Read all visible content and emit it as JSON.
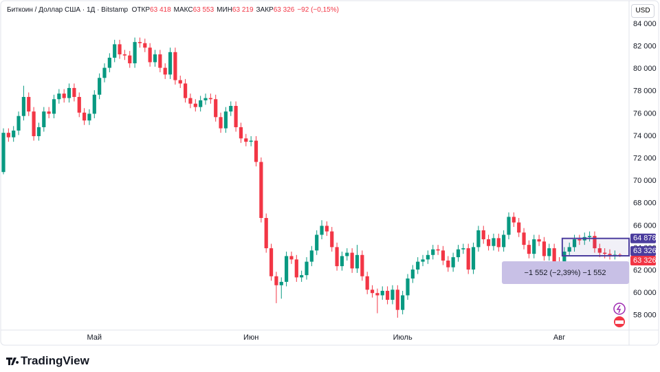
{
  "chart_data": {
    "type": "candlestick",
    "title": "Биткоин / Доллар США · 1Д · Bitstamp",
    "ohlc_labels": [
      {
        "name": "ОТКР",
        "value": "63 418"
      },
      {
        "name": "МАКС",
        "value": "63 553"
      },
      {
        "name": "МИН",
        "value": "63 219"
      },
      {
        "name": "ЗАКР",
        "value": "63 326"
      }
    ],
    "change": "−92 (−0,15%)",
    "currency": "USD",
    "brand": "TradingView",
    "up_color": "#089981",
    "down_color": "#f23645",
    "ylim": [
      56700,
      84800
    ],
    "yticks": [
      {
        "value": 84000,
        "label": "84 000"
      },
      {
        "value": 82000,
        "label": "82 000"
      },
      {
        "value": 80000,
        "label": "80 000"
      },
      {
        "value": 78000,
        "label": "78 000"
      },
      {
        "value": 76000,
        "label": "76 000"
      },
      {
        "value": 74000,
        "label": "74 000"
      },
      {
        "value": 72000,
        "label": "72 000"
      },
      {
        "value": 70000,
        "label": "70 000"
      },
      {
        "value": 68000,
        "label": "68 000"
      },
      {
        "value": 66000,
        "label": "66 000"
      },
      {
        "value": 64000,
        "label": "64 000"
      },
      {
        "value": 62000,
        "label": "62 000"
      },
      {
        "value": 60000,
        "label": "60 000"
      },
      {
        "value": 58000,
        "label": "58 000"
      }
    ],
    "grid": false,
    "categories": [
      null,
      null,
      null,
      null,
      null,
      null,
      null,
      null,
      null,
      null,
      null,
      null,
      null,
      null,
      null,
      null,
      null,
      null,
      "Май",
      null,
      null,
      null,
      null,
      null,
      null,
      null,
      null,
      null,
      null,
      null,
      null,
      null,
      null,
      null,
      null,
      null,
      null,
      null,
      null,
      null,
      null,
      null,
      null,
      null,
      null,
      null,
      null,
      null,
      null,
      "Июн",
      null,
      null,
      null,
      null,
      null,
      null,
      null,
      null,
      null,
      null,
      null,
      null,
      null,
      null,
      null,
      null,
      null,
      null,
      null,
      null,
      null,
      null,
      null,
      null,
      null,
      null,
      null,
      null,
      null,
      "Июль",
      null,
      null,
      null,
      null,
      null,
      null,
      null,
      null,
      null,
      null,
      null,
      null,
      null,
      null,
      null,
      null,
      null,
      null,
      null,
      null,
      null,
      null,
      null,
      null,
      null,
      null,
      null,
      null,
      null,
      null,
      "Авг",
      null,
      null,
      null,
      null,
      null,
      null,
      null,
      null,
      null,
      null,
      null,
      null
    ],
    "open": [
      70800,
      74300,
      73900,
      74500,
      75800,
      77500,
      76200,
      74000,
      74800,
      76200,
      76000,
      77300,
      77800,
      77400,
      78300,
      77500,
      76100,
      75400,
      76000,
      77700,
      79200,
      80100,
      81000,
      82200,
      81300,
      81200,
      80500,
      82400,
      82300,
      81900,
      80600,
      81300,
      80100,
      79500,
      81500,
      79000,
      78700,
      77400,
      76900,
      76600,
      77200,
      77400,
      77300,
      75700,
      74700,
      76200,
      76700,
      74800,
      73800,
      73500,
      73600,
      71700,
      66700,
      64000,
      61500,
      60700,
      61000,
      63300,
      63000,
      61400,
      61600,
      62800,
      63800,
      65200,
      66000,
      65500,
      64100,
      62400,
      63300,
      63600,
      62200,
      63400,
      61500,
      60300,
      60000,
      59800,
      60200,
      59400,
      60300,
      58500,
      59800,
      61300,
      62100,
      62800,
      63000,
      63400,
      63900,
      63800,
      62900,
      62300,
      63200,
      63900,
      64000,
      62100,
      64100,
      65600,
      64800,
      64200,
      64900,
      64100,
      65200,
      66800,
      66300,
      65400,
      64300,
      63500,
      64800,
      64600,
      63300,
      64000,
      62800,
      62600,
      63700,
      64100,
      64800,
      64700,
      65000,
      65100,
      64000,
      63600,
      63500,
      63400,
      63418
    ],
    "high": [
      74700,
      74700,
      74900,
      76200,
      78500,
      77900,
      76600,
      75200,
      76600,
      76600,
      77700,
      78200,
      78200,
      78700,
      78700,
      77900,
      76500,
      76400,
      78100,
      79600,
      80500,
      81400,
      82600,
      82600,
      81700,
      81600,
      82800,
      82800,
      82700,
      82300,
      81700,
      81700,
      80500,
      81900,
      81900,
      79400,
      79100,
      77800,
      77300,
      77600,
      77800,
      77800,
      77700,
      76100,
      76600,
      77100,
      77100,
      75200,
      74200,
      74000,
      74000,
      72100,
      67100,
      64400,
      61900,
      61400,
      63700,
      63700,
      63400,
      62000,
      63200,
      64200,
      65600,
      66500,
      66400,
      65900,
      64500,
      63700,
      64000,
      64000,
      64300,
      63800,
      61900,
      60700,
      60400,
      60600,
      60600,
      60700,
      60700,
      60200,
      61700,
      62500,
      63200,
      63400,
      63800,
      64300,
      64300,
      64200,
      63300,
      63600,
      64300,
      64400,
      64400,
      64500,
      66000,
      66000,
      65200,
      65300,
      65300,
      65600,
      67200,
      67200,
      66700,
      65800,
      64700,
      65200,
      65200,
      65000,
      64400,
      64400,
      63200,
      64100,
      64500,
      65200,
      65200,
      65400,
      65500,
      65500,
      64400,
      64000,
      63900,
      63800,
      63553
    ],
    "low": [
      70600,
      73500,
      73500,
      74100,
      75400,
      75800,
      73600,
      73600,
      74400,
      75600,
      75600,
      76900,
      77000,
      77000,
      77100,
      75700,
      75000,
      75000,
      75600,
      77300,
      78800,
      79700,
      80600,
      80900,
      80800,
      80100,
      80100,
      81900,
      81500,
      80200,
      80200,
      79700,
      79100,
      79100,
      78600,
      78300,
      77000,
      76500,
      76200,
      76200,
      76800,
      76900,
      75300,
      74300,
      74300,
      75800,
      74400,
      73400,
      73100,
      73100,
      71300,
      66300,
      63600,
      61100,
      59100,
      59500,
      60600,
      62600,
      61000,
      61000,
      61200,
      62400,
      63400,
      64800,
      65100,
      63700,
      62000,
      62000,
      62900,
      61800,
      61800,
      61100,
      59900,
      59600,
      58200,
      59400,
      59000,
      59000,
      57800,
      58100,
      59400,
      60900,
      61700,
      62400,
      62600,
      63000,
      63400,
      62500,
      61900,
      61900,
      62800,
      63500,
      61700,
      61700,
      63700,
      64400,
      63800,
      63800,
      63700,
      63700,
      64800,
      65900,
      65000,
      63900,
      63100,
      63100,
      64200,
      62900,
      62900,
      62400,
      62200,
      62200,
      63300,
      63700,
      64300,
      64300,
      64600,
      63600,
      63200,
      63100,
      63000,
      63000,
      63219
    ],
    "close": [
      74300,
      73900,
      74500,
      75800,
      77500,
      76200,
      74000,
      74800,
      76200,
      76000,
      77300,
      77800,
      77400,
      78300,
      77500,
      76100,
      75400,
      76000,
      77700,
      79200,
      80100,
      81000,
      82200,
      81300,
      81200,
      80500,
      82400,
      82300,
      81900,
      80600,
      81300,
      80100,
      79500,
      81500,
      79000,
      78700,
      77400,
      76900,
      76600,
      77200,
      77400,
      77300,
      75700,
      74700,
      76200,
      76700,
      74800,
      73800,
      73500,
      73600,
      71700,
      66700,
      64000,
      61500,
      60700,
      61000,
      63300,
      63000,
      61400,
      61600,
      62800,
      63800,
      65200,
      66000,
      65500,
      64100,
      62400,
      63300,
      63600,
      62200,
      63400,
      61500,
      60300,
      60000,
      59800,
      60200,
      59400,
      60300,
      58500,
      59800,
      61300,
      62100,
      62800,
      63000,
      63400,
      63900,
      63800,
      62900,
      62300,
      63200,
      63900,
      64000,
      62100,
      64100,
      65600,
      64800,
      64200,
      64900,
      64100,
      65200,
      66800,
      66300,
      65400,
      64300,
      63500,
      64800,
      64600,
      63300,
      64000,
      62800,
      62600,
      63700,
      64100,
      64800,
      64700,
      65000,
      65100,
      64000,
      63600,
      63500,
      63400,
      63418,
      63326
    ],
    "price_labels": [
      {
        "value": 64878,
        "label": "64 878",
        "color": "#4b3d9e"
      },
      {
        "value": 63326,
        "label": "63 326",
        "color": "#4b3d9e"
      },
      {
        "value": 63326,
        "label": "63 326",
        "color": "#f23645"
      }
    ],
    "measure": {
      "from": 64878,
      "to": 63326,
      "label": "−1 552 (−2,39%) −1 552"
    }
  }
}
